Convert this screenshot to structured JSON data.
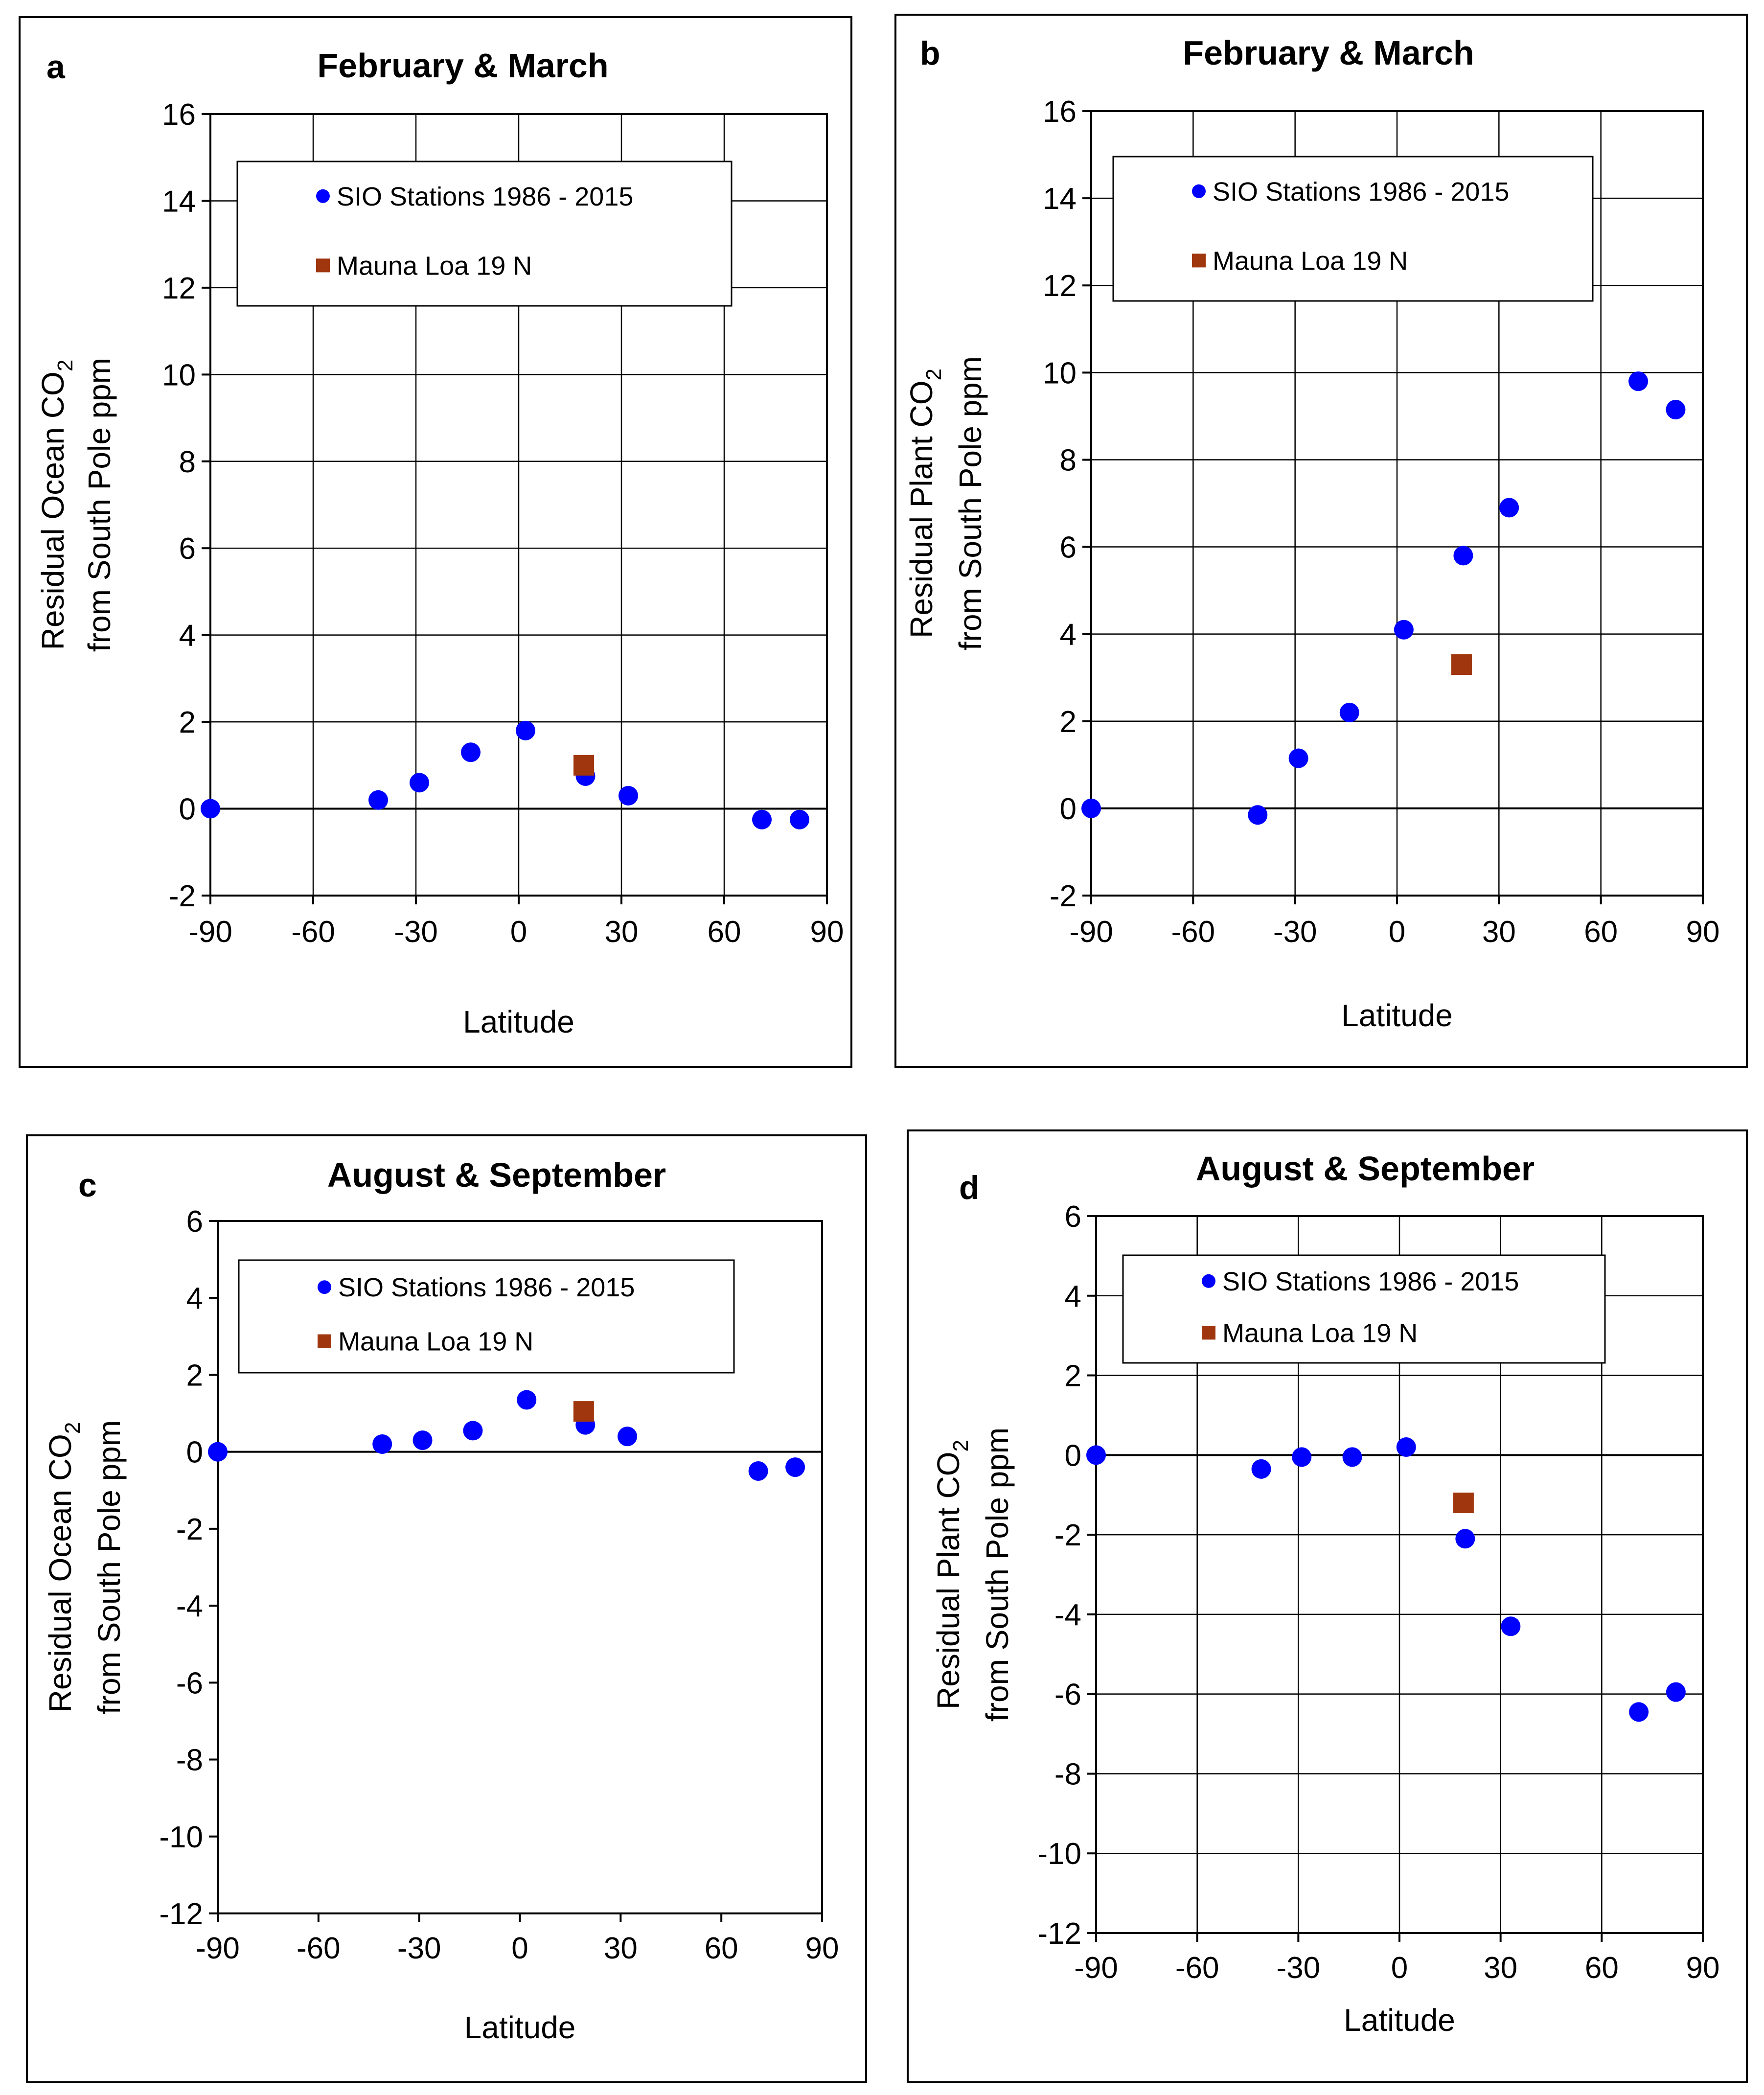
{
  "chart_data": [
    {
      "panel": "a",
      "type": "scatter",
      "title": "February & March",
      "xlabel": "Latitude",
      "ylabel_line1": "Residual Ocean  CO",
      "ylabel_sub": "2",
      "ylabel_line2": "from South Pole ppm",
      "xlim": [
        -90,
        90
      ],
      "ylim": [
        -2,
        16
      ],
      "xticks": [
        -90,
        -60,
        -30,
        0,
        30,
        60,
        90
      ],
      "yticks": [
        -2,
        0,
        2,
        4,
        6,
        8,
        10,
        12,
        14,
        16
      ],
      "grid": true,
      "legend_position": "top",
      "series": [
        {
          "name": "SIO Stations 1986 - 2015",
          "marker": "circle",
          "color": "#0000ff",
          "x": [
            -90,
            -41,
            -29,
            -14,
            2,
            19.5,
            32,
            71,
            82
          ],
          "y": [
            0,
            0.2,
            0.6,
            1.3,
            1.8,
            0.75,
            0.3,
            -0.25,
            -0.25
          ]
        },
        {
          "name": "Mauna Loa 19 N",
          "marker": "square",
          "color": "#a0360e",
          "x": [
            19
          ],
          "y": [
            1.0
          ]
        }
      ]
    },
    {
      "panel": "b",
      "type": "scatter",
      "title": "February & March",
      "xlabel": "Latitude",
      "ylabel_line1": "Residual Plant  CO",
      "ylabel_sub": "2",
      "ylabel_line2": "from South Pole ppm",
      "xlim": [
        -90,
        90
      ],
      "ylim": [
        -2,
        16
      ],
      "xticks": [
        -90,
        -60,
        -30,
        0,
        30,
        60,
        90
      ],
      "yticks": [
        -2,
        0,
        2,
        4,
        6,
        8,
        10,
        12,
        14,
        16
      ],
      "grid": true,
      "legend_position": "top",
      "series": [
        {
          "name": "SIO Stations 1986 - 2015",
          "marker": "circle",
          "color": "#0000ff",
          "x": [
            -90,
            -41,
            -29,
            -14,
            2,
            19.5,
            33,
            71,
            82
          ],
          "y": [
            0,
            -0.15,
            1.15,
            2.2,
            4.1,
            5.8,
            6.9,
            9.8,
            9.15
          ]
        },
        {
          "name": "Mauna Loa 19 N",
          "marker": "square",
          "color": "#a0360e",
          "x": [
            19
          ],
          "y": [
            3.3
          ]
        }
      ]
    },
    {
      "panel": "c",
      "type": "scatter",
      "title": "August & September",
      "xlabel": "Latitude",
      "ylabel_line1": "Residual Ocean  CO",
      "ylabel_sub": "2",
      "ylabel_line2": "from South Pole ppm",
      "xlim": [
        -90,
        90
      ],
      "ylim": [
        -12,
        6
      ],
      "xticks": [
        -90,
        -60,
        -30,
        0,
        30,
        60,
        90
      ],
      "yticks": [
        -12,
        -10,
        -8,
        -6,
        -4,
        -2,
        0,
        2,
        4,
        6
      ],
      "grid": false,
      "legend_position": "top",
      "series": [
        {
          "name": "SIO Stations 1986 - 2015",
          "marker": "circle",
          "color": "#0000ff",
          "x": [
            -90,
            -41,
            -29,
            -14,
            2,
            19.5,
            32,
            71,
            82
          ],
          "y": [
            0,
            0.2,
            0.3,
            0.55,
            1.35,
            0.7,
            0.4,
            -0.5,
            -0.4
          ]
        },
        {
          "name": "Mauna Loa 19 N",
          "marker": "square",
          "color": "#a0360e",
          "x": [
            19
          ],
          "y": [
            1.05
          ]
        }
      ]
    },
    {
      "panel": "d",
      "type": "scatter",
      "title": "August & September",
      "xlabel": "Latitude",
      "ylabel_line1": "Residual Plant CO",
      "ylabel_sub": "2",
      "ylabel_line2": "from South Pole ppm",
      "xlim": [
        -90,
        90
      ],
      "ylim": [
        -12,
        6
      ],
      "xticks": [
        -90,
        -60,
        -30,
        0,
        30,
        60,
        90
      ],
      "yticks": [
        -12,
        -10,
        -8,
        -6,
        -4,
        -2,
        0,
        2,
        4,
        6
      ],
      "grid": true,
      "legend_position": "top",
      "series": [
        {
          "name": "SIO Stations 1986 - 2015",
          "marker": "circle",
          "color": "#0000ff",
          "x": [
            -90,
            -41,
            -29,
            -14,
            2,
            19.5,
            33,
            71,
            82
          ],
          "y": [
            0,
            -0.35,
            -0.05,
            -0.05,
            0.2,
            -2.1,
            -4.3,
            -6.45,
            -5.95
          ]
        },
        {
          "name": "Mauna Loa 19 N",
          "marker": "square",
          "color": "#a0360e",
          "x": [
            19
          ],
          "y": [
            -1.2
          ]
        }
      ]
    }
  ]
}
